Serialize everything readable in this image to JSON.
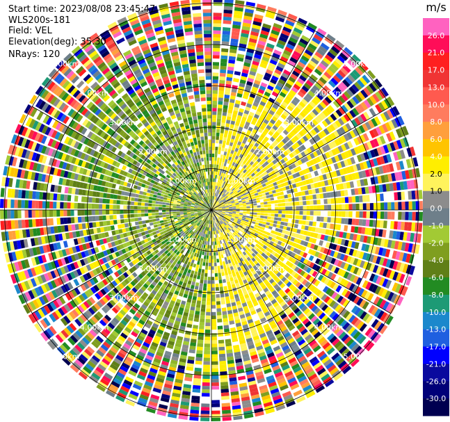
{
  "info": {
    "start_time": "Start time: 2023/08/08 23:45:47",
    "instrument": "WLS200s-181",
    "field": "Field: VEL",
    "elevation": "Elevation(deg): 35.30",
    "nrays": "NRays: 120"
  },
  "chart_data": {
    "type": "heatmap",
    "projection": "polar PPI",
    "field": "VEL",
    "n_rays": 120,
    "range_ring_labels": [
      "1.00km",
      "2.00km",
      "3.00km",
      "4.00km",
      "5.00km"
    ],
    "max_range_km": 5.1,
    "colorbar": {
      "unit": "m/s",
      "tick_labels": [
        "26.0",
        "21.0",
        "17.0",
        "13.0",
        "10.0",
        "8.0",
        "6.0",
        "4.0",
        "2.0",
        "1.0",
        "0.0",
        "-1.0",
        "-2.0",
        "-4.0",
        "-6.0",
        "-8.0",
        "-10.0",
        "-13.0",
        "-17.0",
        "-21.0",
        "-26.0",
        "-30.0"
      ],
      "colors": [
        "#ff62c0",
        "#ff0d58",
        "#ff1f1f",
        "#f03434",
        "#ff5a4f",
        "#ff7c5e",
        "#ff9f3c",
        "#ffc400",
        "#ffee00",
        "#fff35c",
        "#8c8c8c",
        "#6e7f8a",
        "#a2ca34",
        "#7f9e1f",
        "#5f7f17",
        "#228b22",
        "#1d9a75",
        "#1b88cc",
        "#1f5fe0",
        "#0000ff",
        "#0a0a9e",
        "#000078",
        "#000050"
      ]
    },
    "regions": [
      {
        "description_color": "yellow",
        "values": "1.0 to 2.0",
        "sector": "east"
      },
      {
        "description_color": "olive/green",
        "values": "-2.0 to -6.0",
        "sector": "west"
      },
      {
        "description_color": "grey",
        "values": "0.0 to -1.0",
        "sector": "scattered"
      }
    ]
  }
}
